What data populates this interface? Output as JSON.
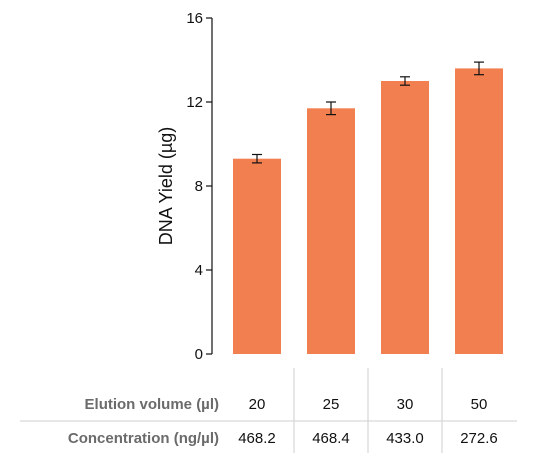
{
  "chart_data": {
    "type": "bar",
    "categories": [
      "20",
      "25",
      "30",
      "50"
    ],
    "values": [
      9.3,
      11.7,
      13.0,
      13.6
    ],
    "errors": [
      0.2,
      0.3,
      0.2,
      0.3
    ],
    "ylabel": "DNA Yield (µg)",
    "ylim": [
      0,
      16
    ],
    "yticks": [
      0,
      4,
      8,
      12,
      16
    ],
    "grid": false,
    "bar_color": "#f27f4f",
    "table": {
      "rows": [
        {
          "label": "Elution volume (µl)",
          "values": [
            "20",
            "25",
            "30",
            "50"
          ]
        },
        {
          "label": "Concentration (ng/µl)",
          "values": [
            "468.2",
            "468.4",
            "433.0",
            "272.6"
          ]
        }
      ]
    }
  }
}
